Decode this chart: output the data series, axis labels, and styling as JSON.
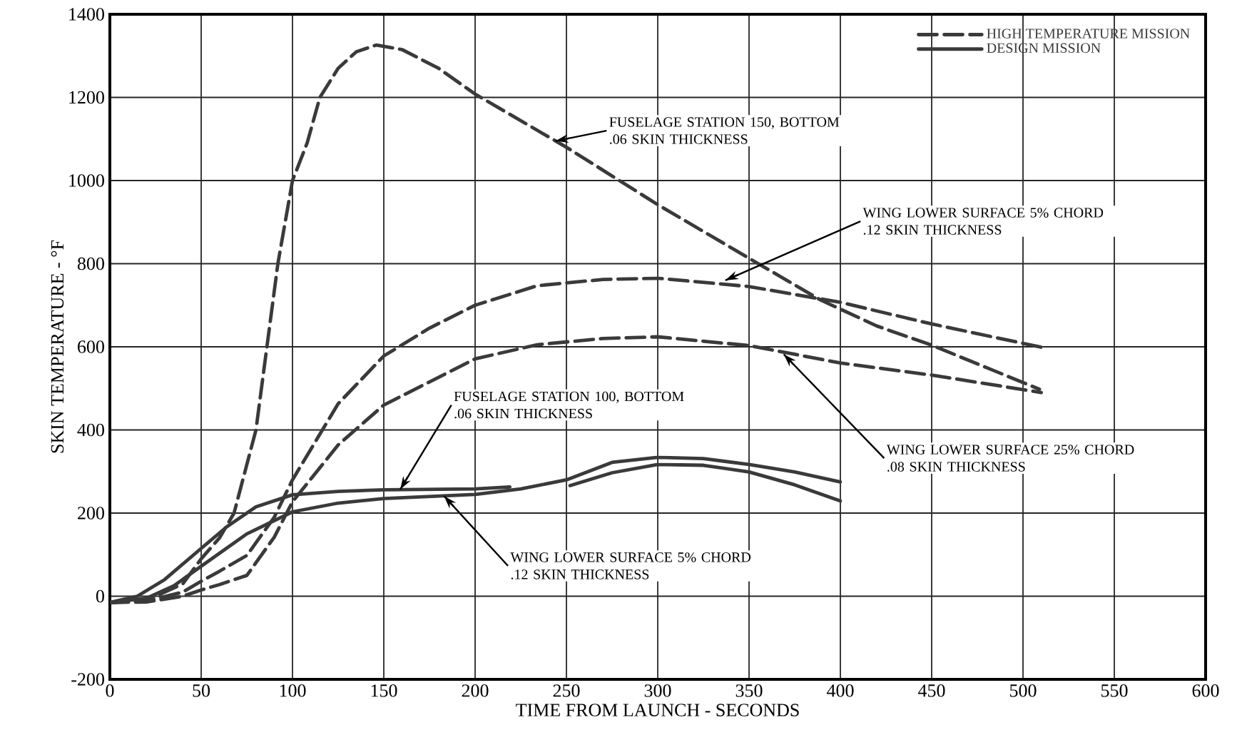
{
  "chart_data": {
    "type": "line",
    "xlabel": "TIME FROM LAUNCH - SECONDS",
    "ylabel": "SKIN TEMPERATURE - °F",
    "xlim": [
      0,
      600
    ],
    "ylim": [
      -200,
      1400
    ],
    "xticks": [
      0,
      50,
      100,
      150,
      200,
      250,
      300,
      350,
      400,
      450,
      500,
      550,
      600
    ],
    "yticks": [
      -200,
      0,
      200,
      400,
      600,
      800,
      1000,
      1200,
      1400
    ],
    "grid": true,
    "legend": "top right",
    "series": [
      {
        "name": "HIGH TEMPERATURE MISSION",
        "color": "#3a3a3a",
        "line_style": "dashed",
        "x": [
          0,
          20,
          40,
          50,
          60,
          68,
          74,
          80,
          86,
          92,
          100,
          108,
          115,
          125,
          135,
          146,
          160,
          180,
          200,
          250,
          300,
          350,
          389,
          420,
          450,
          480,
          509
        ],
        "values": [
          -15,
          -10,
          30,
          90,
          140,
          200,
          300,
          400,
          600,
          800,
          1000,
          1090,
          1200,
          1270,
          1310,
          1326,
          1315,
          1270,
          1208,
          1080,
          942,
          813,
          713,
          650,
          604,
          550,
          498
        ]
      },
      {
        "color": "#3a3a3a",
        "line_style": "dashed",
        "x": [
          0,
          20,
          40,
          50,
          60,
          75,
          90,
          100,
          125,
          150,
          175,
          200,
          234,
          270,
          300,
          350,
          400,
          450,
          510
        ],
        "values": [
          -15,
          -12,
          10,
          36,
          60,
          98,
          190,
          280,
          463,
          578,
          645,
          700,
          747,
          762,
          765,
          745,
          707,
          655,
          599
        ]
      },
      {
        "color": "#3a3a3a",
        "line_style": "dashed",
        "x": [
          0,
          20,
          40,
          50,
          60,
          75,
          90,
          100,
          125,
          150,
          200,
          234,
          270,
          300,
          350,
          400,
          450,
          510
        ],
        "values": [
          -15,
          -14,
          0,
          15,
          28,
          50,
          142,
          227,
          364,
          460,
          571,
          605,
          620,
          624,
          603,
          561,
          532,
          490
        ]
      },
      {
        "name": "DESIGN MISSION",
        "color": "#3a3a3a",
        "line_style": "solid",
        "x": [
          0,
          20,
          35,
          50,
          75,
          100,
          125,
          150,
          200,
          225,
          250,
          275,
          300,
          325,
          350,
          375,
          400
        ],
        "values": [
          -15,
          -5,
          25,
          72,
          150,
          203,
          224,
          235,
          245,
          258,
          280,
          322,
          334,
          331,
          317,
          299,
          275
        ]
      },
      {
        "color": "#3a3a3a",
        "line_style": "solid",
        "x": [
          0,
          15,
          30,
          50,
          64,
          80,
          100,
          125,
          150,
          200,
          219,
          235,
          252,
          275,
          300,
          325,
          350,
          375,
          400
        ],
        "values": [
          -15,
          0,
          40,
          115,
          167,
          215,
          244,
          252,
          256,
          258,
          263,
          null,
          266,
          297,
          317,
          315,
          299,
          268,
          229
        ]
      }
    ],
    "annotations": [
      {
        "text": "FUSELAGE STATION 150, BOTTOM .06 SKIN THICKNESS",
        "x": 244,
        "y": 1095
      },
      {
        "text": "WING LOWER SURFACE 5% CHORD .12 SKIN THICKNESS",
        "x": 337,
        "y": 760
      },
      {
        "text": "WING LOWER SURFACE 25% CHORD .08 SKIN THICKNESS",
        "x": 369,
        "y": 582
      },
      {
        "text": "FUSELAGE STATION 100, BOTTOM .06 SKIN THICKNESS",
        "x": 159,
        "y": 257
      },
      {
        "text": "WING LOWER SURFACE 5% CHORD .12 SKIN THICKNESS",
        "x": 183,
        "y": 241
      }
    ]
  }
}
